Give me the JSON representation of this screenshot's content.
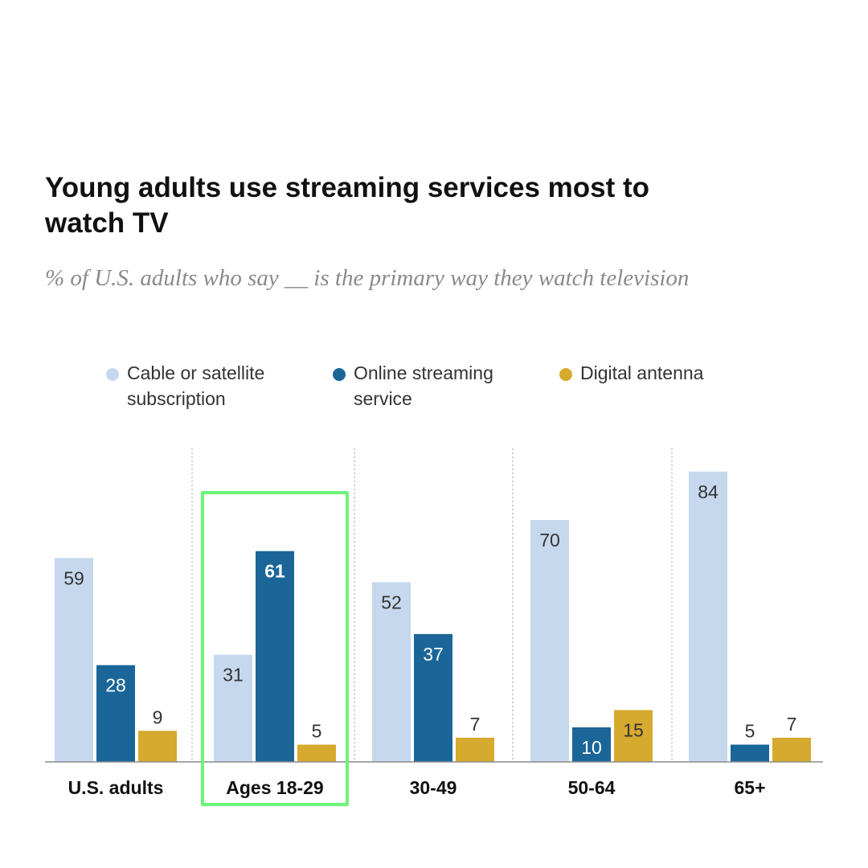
{
  "title": "Young adults use streaming services most to watch TV",
  "subtitle": "% of U.S. adults who say __ is the primary way they watch television",
  "legend": [
    {
      "label": "Cable or satellite subscription",
      "color": "#c6d8ee"
    },
    {
      "label": "Online streaming service",
      "color": "#1a6699"
    },
    {
      "label": "Digital antenna",
      "color": "#d6aa2e"
    }
  ],
  "chart_data": {
    "type": "bar",
    "title": "Young adults use streaming services most to watch TV",
    "subtitle": "% of U.S. adults who say __ is the primary way they watch television",
    "categories": [
      "U.S. adults",
      "Ages 18-29",
      "30-49",
      "50-64",
      "65+"
    ],
    "series": [
      {
        "name": "Cable or satellite subscription",
        "color": "#c6d8ee",
        "values": [
          59,
          31,
          52,
          70,
          84
        ]
      },
      {
        "name": "Online streaming service",
        "color": "#1a6699",
        "values": [
          28,
          61,
          37,
          10,
          5
        ]
      },
      {
        "name": "Digital antenna",
        "color": "#d6aa2e",
        "values": [
          9,
          5,
          7,
          15,
          7
        ]
      }
    ],
    "ylim": [
      0,
      100
    ],
    "grid": false,
    "separators": "dotted-vertical",
    "legend_position": "top",
    "highlighted_category": "Ages 18-29",
    "highlight_color": "#6cf47a"
  }
}
